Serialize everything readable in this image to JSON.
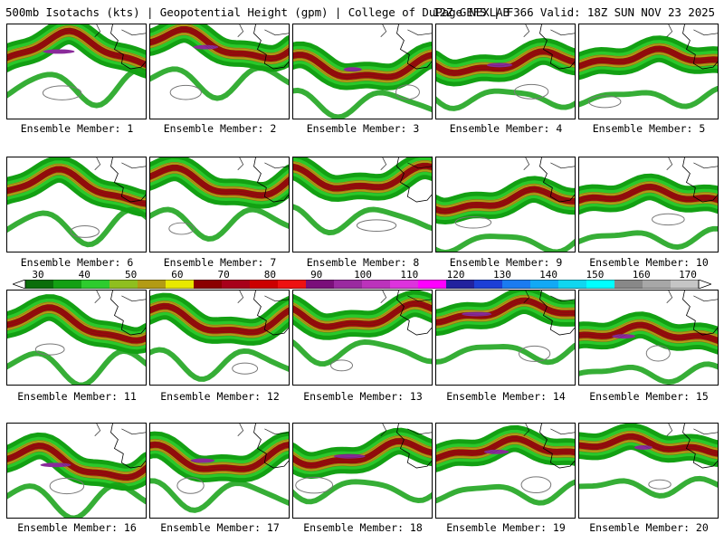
{
  "header": {
    "left_title": "500mb Isotachs (kts) | Geopotential Height (gpm) | College of DuPage NEXLAB",
    "right_title": "12Z GEFS | F366 Valid: 18Z SUN NOV 23 2025"
  },
  "colorbar": {
    "labels": [
      "30",
      "40",
      "50",
      "60",
      "70",
      "80",
      "90",
      "100",
      "110",
      "120",
      "130",
      "140",
      "150",
      "160",
      "170"
    ],
    "colors": [
      "#0a6e0a",
      "#13a013",
      "#2ecc2e",
      "#8fbf1f",
      "#b39b14",
      "#e8e800",
      "#8b0000",
      "#a8001a",
      "#cc0000",
      "#ee1111",
      "#7a0f7a",
      "#9a2aa0",
      "#bb33bb",
      "#dd33dd",
      "#ff00ff",
      "#22229e",
      "#1c3fd6",
      "#1b7bf0",
      "#12a9f5",
      "#10d6f0",
      "#00ffff",
      "#888888",
      "#a7a7a7",
      "#c5c5c5"
    ]
  },
  "members": [
    {
      "label": "Ensemble Member: 1"
    },
    {
      "label": "Ensemble Member: 2"
    },
    {
      "label": "Ensemble Member: 3"
    },
    {
      "label": "Ensemble Member: 4"
    },
    {
      "label": "Ensemble Member: 5"
    },
    {
      "label": "Ensemble Member: 6"
    },
    {
      "label": "Ensemble Member: 7"
    },
    {
      "label": "Ensemble Member: 8"
    },
    {
      "label": "Ensemble Member: 9"
    },
    {
      "label": "Ensemble Member: 10"
    },
    {
      "label": "Ensemble Member: 11"
    },
    {
      "label": "Ensemble Member: 12"
    },
    {
      "label": "Ensemble Member: 13"
    },
    {
      "label": "Ensemble Member: 14"
    },
    {
      "label": "Ensemble Member: 15"
    },
    {
      "label": "Ensemble Member: 16"
    },
    {
      "label": "Ensemble Member: 17"
    },
    {
      "label": "Ensemble Member: 18"
    },
    {
      "label": "Ensemble Member: 19"
    },
    {
      "label": "Ensemble Member: 20"
    }
  ]
}
